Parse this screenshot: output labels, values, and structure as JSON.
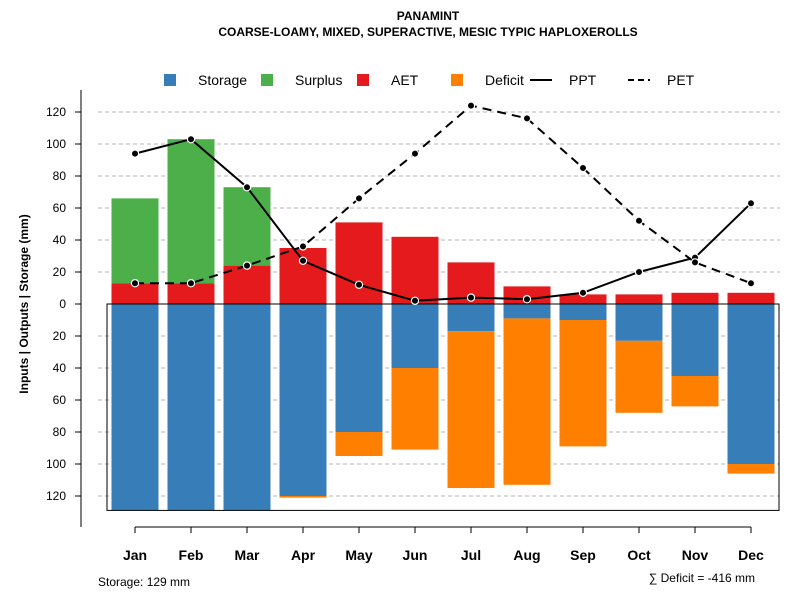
{
  "chart_data": {
    "type": "bar",
    "title": "PANAMINT",
    "subtitle": "COARSE-LOAMY, MIXED, SUPERACTIVE, MESIC TYPIC HAPLOXEROLLS",
    "ylabel": "Inputs | Outputs | Storage    (mm)",
    "ylim": [
      -130,
      130
    ],
    "yticks": [
      120,
      100,
      80,
      60,
      40,
      20,
      0,
      -20,
      -40,
      -60,
      -80,
      -100,
      -120
    ],
    "ytick_labels": [
      "120",
      "100",
      "80",
      "60",
      "40",
      "20",
      "0",
      "20",
      "40",
      "60",
      "80",
      "100",
      "120"
    ],
    "categories": [
      "Jan",
      "Feb",
      "Mar",
      "Apr",
      "May",
      "Jun",
      "Jul",
      "Aug",
      "Sep",
      "Oct",
      "Nov",
      "Dec"
    ],
    "grid": true,
    "legend_position": "top",
    "legend": [
      {
        "label": "Storage",
        "kind": "square",
        "color": "#377EB8"
      },
      {
        "label": "Surplus",
        "kind": "square",
        "color": "#4DAF4A"
      },
      {
        "label": "AET",
        "kind": "square",
        "color": "#E41A1C"
      },
      {
        "label": "Deficit",
        "kind": "square",
        "color": "#FF7F00"
      },
      {
        "label": "PPT",
        "kind": "solid-line",
        "color": "#000000"
      },
      {
        "label": "PET",
        "kind": "dashed-line",
        "color": "#000000"
      }
    ],
    "series": [
      {
        "name": "AET",
        "color": "#E41A1C",
        "values": [
          13,
          13,
          24,
          35,
          51,
          42,
          26,
          11,
          6,
          6,
          7,
          7
        ]
      },
      {
        "name": "Surplus",
        "color": "#4DAF4A",
        "values": [
          53,
          90,
          49,
          0,
          0,
          0,
          0,
          0,
          0,
          0,
          0,
          0
        ]
      },
      {
        "name": "Storage",
        "color": "#377EB8",
        "values": [
          129,
          129,
          129,
          120,
          80,
          40,
          17,
          9,
          10,
          23,
          45,
          100
        ]
      },
      {
        "name": "Deficit",
        "color": "#FF7F00",
        "values": [
          0,
          0,
          0,
          1,
          15,
          51,
          98,
          104,
          79,
          45,
          19,
          6
        ]
      },
      {
        "name": "PPT",
        "color": "#000000",
        "values": [
          94,
          103,
          73,
          27,
          12,
          2,
          4,
          3,
          7,
          20,
          29,
          63
        ]
      },
      {
        "name": "PET",
        "color": "#000000",
        "values": [
          13,
          13,
          24,
          36,
          66,
          94,
          124,
          116,
          85,
          52,
          26,
          13
        ]
      }
    ],
    "storage_note": "Storage: 129 mm",
    "deficit_note": "∑ Deficit = -416 mm"
  }
}
